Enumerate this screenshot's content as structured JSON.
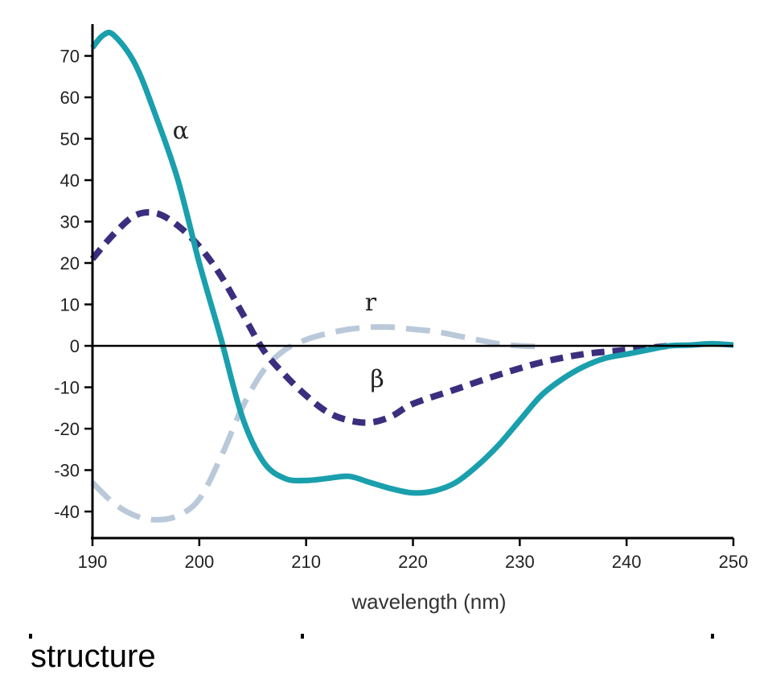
{
  "chart_data": {
    "type": "line",
    "xlabel": "wavelength (nm)",
    "ylabel": "",
    "xlim": [
      190,
      250
    ],
    "ylim": [
      -45,
      75
    ],
    "x_ticks": [
      190,
      200,
      210,
      220,
      230,
      240,
      250
    ],
    "y_ticks": [
      70,
      60,
      50,
      40,
      30,
      20,
      10,
      0,
      -10,
      -20,
      -30,
      -40
    ],
    "grid": false,
    "zero_line": true,
    "series": [
      {
        "name": "α",
        "color": "#1a9fad",
        "style": "solid",
        "x": [
          190,
          191,
          192,
          194,
          196,
          198,
          200,
          202,
          204,
          206,
          208,
          210,
          212,
          214,
          216,
          218,
          220,
          222,
          224,
          226,
          228,
          230,
          232,
          234,
          236,
          238,
          240,
          242,
          244,
          246,
          248,
          250
        ],
        "y": [
          72,
          75,
          75,
          68,
          55,
          40,
          20,
          2,
          -17,
          -28,
          -32,
          -32.5,
          -32,
          -31.5,
          -33,
          -34.5,
          -35.5,
          -35,
          -33,
          -29,
          -24,
          -18,
          -12,
          -8,
          -5,
          -3,
          -2,
          -1,
          0,
          0.2,
          0.5,
          0.2
        ],
        "label": "α"
      },
      {
        "name": "β",
        "color": "#3c2e7e",
        "style": "dashed",
        "x": [
          190,
          192,
          194,
          196,
          198,
          200,
          202,
          204,
          206,
          208,
          210,
          212,
          214,
          216,
          218,
          220,
          224,
          228,
          232,
          236,
          240,
          244
        ],
        "y": [
          21,
          27,
          31.5,
          32,
          29,
          24,
          17,
          8,
          -1,
          -7,
          -12,
          -16,
          -18,
          -18.5,
          -17,
          -14,
          -10.5,
          -7,
          -4,
          -2,
          -1,
          0
        ],
        "label": "β"
      },
      {
        "name": "r",
        "color": "#b9c9d9",
        "style": "dashed",
        "x": [
          190,
          192,
          194,
          196,
          198,
          200,
          202,
          204,
          206,
          208,
          210,
          212,
          214,
          216,
          218,
          220,
          222,
          224,
          226,
          228,
          230,
          232
        ],
        "y": [
          -33,
          -38,
          -41,
          -42,
          -41,
          -37,
          -27,
          -15,
          -6,
          -1,
          1.5,
          3,
          4,
          4.5,
          4.5,
          4,
          3.5,
          2.5,
          1.5,
          0.5,
          0,
          -0.2
        ],
        "label": "r"
      }
    ]
  },
  "caption_fragment": "structure"
}
